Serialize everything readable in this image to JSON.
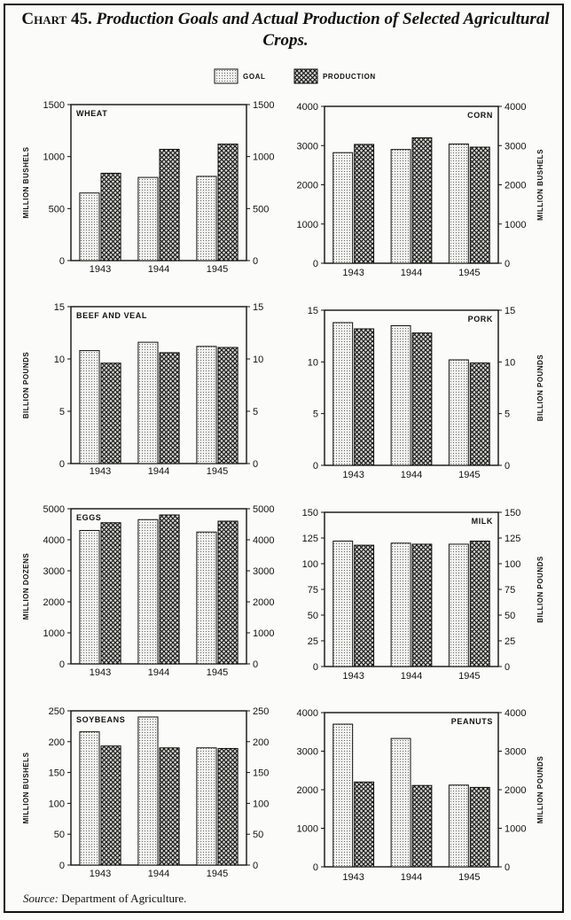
{
  "title": {
    "number": "Chart 45.",
    "text": "Production Goals and Actual Production of Selected Agricultural Crops."
  },
  "source": {
    "label": "Source:",
    "text": "Department of Agriculture."
  },
  "legend": [
    {
      "name": "GOAL",
      "pattern": "dots"
    },
    {
      "name": "PRODUCTION",
      "pattern": "crosshatch"
    }
  ],
  "chart_data": [
    {
      "type": "bar",
      "title": "WHEAT",
      "title_pos": "left",
      "categories": [
        "1943",
        "1944",
        "1945"
      ],
      "ylabel": "MILLION BUSHELS",
      "ylabel_side": "left",
      "ylim": [
        0,
        1500
      ],
      "ticks": [
        0,
        500,
        1000,
        1500
      ],
      "series": [
        {
          "name": "GOAL",
          "values": [
            650,
            800,
            810
          ]
        },
        {
          "name": "PRODUCTION",
          "values": [
            840,
            1070,
            1120
          ]
        }
      ]
    },
    {
      "type": "bar",
      "title": "CORN",
      "title_pos": "right",
      "categories": [
        "1943",
        "1944",
        "1945"
      ],
      "ylabel": "MILLION BUSHELS",
      "ylabel_side": "right",
      "ylim": [
        0,
        4000
      ],
      "ticks": [
        0,
        1000,
        2000,
        3000,
        4000
      ],
      "series": [
        {
          "name": "GOAL",
          "values": [
            2820,
            2900,
            3040
          ]
        },
        {
          "name": "PRODUCTION",
          "values": [
            3030,
            3200,
            2960
          ]
        }
      ]
    },
    {
      "type": "bar",
      "title": "BEEF AND VEAL",
      "title_pos": "left",
      "categories": [
        "1943",
        "1944",
        "1945"
      ],
      "ylabel": "BILLION POUNDS",
      "ylabel_side": "left",
      "ylim": [
        0,
        15
      ],
      "ticks": [
        0,
        5,
        10,
        15
      ],
      "series": [
        {
          "name": "GOAL",
          "values": [
            10.8,
            11.6,
            11.2
          ]
        },
        {
          "name": "PRODUCTION",
          "values": [
            9.6,
            10.6,
            11.1
          ]
        }
      ]
    },
    {
      "type": "bar",
      "title": "PORK",
      "title_pos": "right",
      "categories": [
        "1943",
        "1944",
        "1945"
      ],
      "ylabel": "BILLION POUNDS",
      "ylabel_side": "right",
      "ylim": [
        0,
        15
      ],
      "ticks": [
        0,
        5,
        10,
        15
      ],
      "series": [
        {
          "name": "GOAL",
          "values": [
            13.8,
            13.5,
            10.2
          ]
        },
        {
          "name": "PRODUCTION",
          "values": [
            13.2,
            12.8,
            9.9
          ]
        }
      ]
    },
    {
      "type": "bar",
      "title": "EGGS",
      "title_pos": "left",
      "categories": [
        "1943",
        "1944",
        "1945"
      ],
      "ylabel": "MILLION DOZENS",
      "ylabel_side": "left",
      "ylim": [
        0,
        5000
      ],
      "ticks": [
        0,
        1000,
        2000,
        3000,
        4000,
        5000
      ],
      "series": [
        {
          "name": "GOAL",
          "values": [
            4300,
            4650,
            4250
          ]
        },
        {
          "name": "PRODUCTION",
          "values": [
            4550,
            4800,
            4600
          ]
        }
      ]
    },
    {
      "type": "bar",
      "title": "MILK",
      "title_pos": "right",
      "categories": [
        "1943",
        "1944",
        "1945"
      ],
      "ylabel": "BILLION POUNDS",
      "ylabel_side": "right",
      "ylim": [
        0,
        150
      ],
      "ticks": [
        0,
        25,
        50,
        75,
        100,
        125,
        150
      ],
      "series": [
        {
          "name": "GOAL",
          "values": [
            122,
            120,
            119
          ]
        },
        {
          "name": "PRODUCTION",
          "values": [
            118,
            119,
            122
          ]
        }
      ]
    },
    {
      "type": "bar",
      "title": "SOYBEANS",
      "title_pos": "left",
      "categories": [
        "1943",
        "1944",
        "1945"
      ],
      "ylabel": "MILLION BUSHELS",
      "ylabel_side": "left",
      "ylim": [
        0,
        250
      ],
      "ticks": [
        0,
        50,
        100,
        150,
        200,
        250
      ],
      "series": [
        {
          "name": "GOAL",
          "values": [
            216,
            240,
            190
          ]
        },
        {
          "name": "PRODUCTION",
          "values": [
            193,
            190,
            189
          ]
        }
      ]
    },
    {
      "type": "bar",
      "title": "PEANUTS",
      "title_pos": "right",
      "categories": [
        "1943",
        "1944",
        "1945"
      ],
      "ylabel": "MILLION POUNDS",
      "ylabel_side": "right",
      "ylim": [
        0,
        4000
      ],
      "ticks": [
        0,
        1000,
        2000,
        3000,
        4000
      ],
      "series": [
        {
          "name": "GOAL",
          "values": [
            3700,
            3330,
            2120
          ]
        },
        {
          "name": "PRODUCTION",
          "values": [
            2200,
            2110,
            2060
          ]
        }
      ]
    }
  ]
}
